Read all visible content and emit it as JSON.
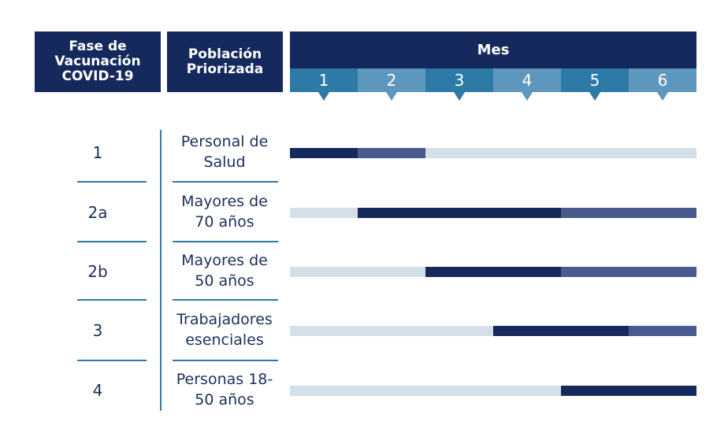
{
  "headers": {
    "phase": "Fase de\nVacunación\nCOVID-19",
    "population": "Población\nPriorizada",
    "month": "Mes"
  },
  "months": [
    "1",
    "2",
    "3",
    "4",
    "5",
    "6"
  ],
  "colors": {
    "header": "#15295c",
    "month_odd": "#2d7aa7",
    "month_even": "#5e97bd",
    "primary_period": "#15295c",
    "secondary_period": "#4a5a8e",
    "track": "#d4dfe8",
    "divider": "#2d7aa7"
  },
  "rows": [
    {
      "phase": "1",
      "population": "Personal de\nSalud",
      "primary": [
        1,
        1
      ],
      "secondary": [
        2,
        2
      ]
    },
    {
      "phase": "2a",
      "population": "Mayores de\n70 años",
      "primary": [
        2,
        4
      ],
      "secondary": [
        5,
        6
      ]
    },
    {
      "phase": "2b",
      "population": "Mayores de\n50 años",
      "primary": [
        3,
        4
      ],
      "secondary": [
        5,
        6
      ]
    },
    {
      "phase": "3",
      "population": "Trabajadores\nesenciales",
      "primary": [
        4,
        5
      ],
      "secondary": [
        6,
        6
      ]
    },
    {
      "phase": "4",
      "population": "Personas 18-\n50 años",
      "primary": [
        5,
        6
      ],
      "secondary": null
    }
  ]
}
